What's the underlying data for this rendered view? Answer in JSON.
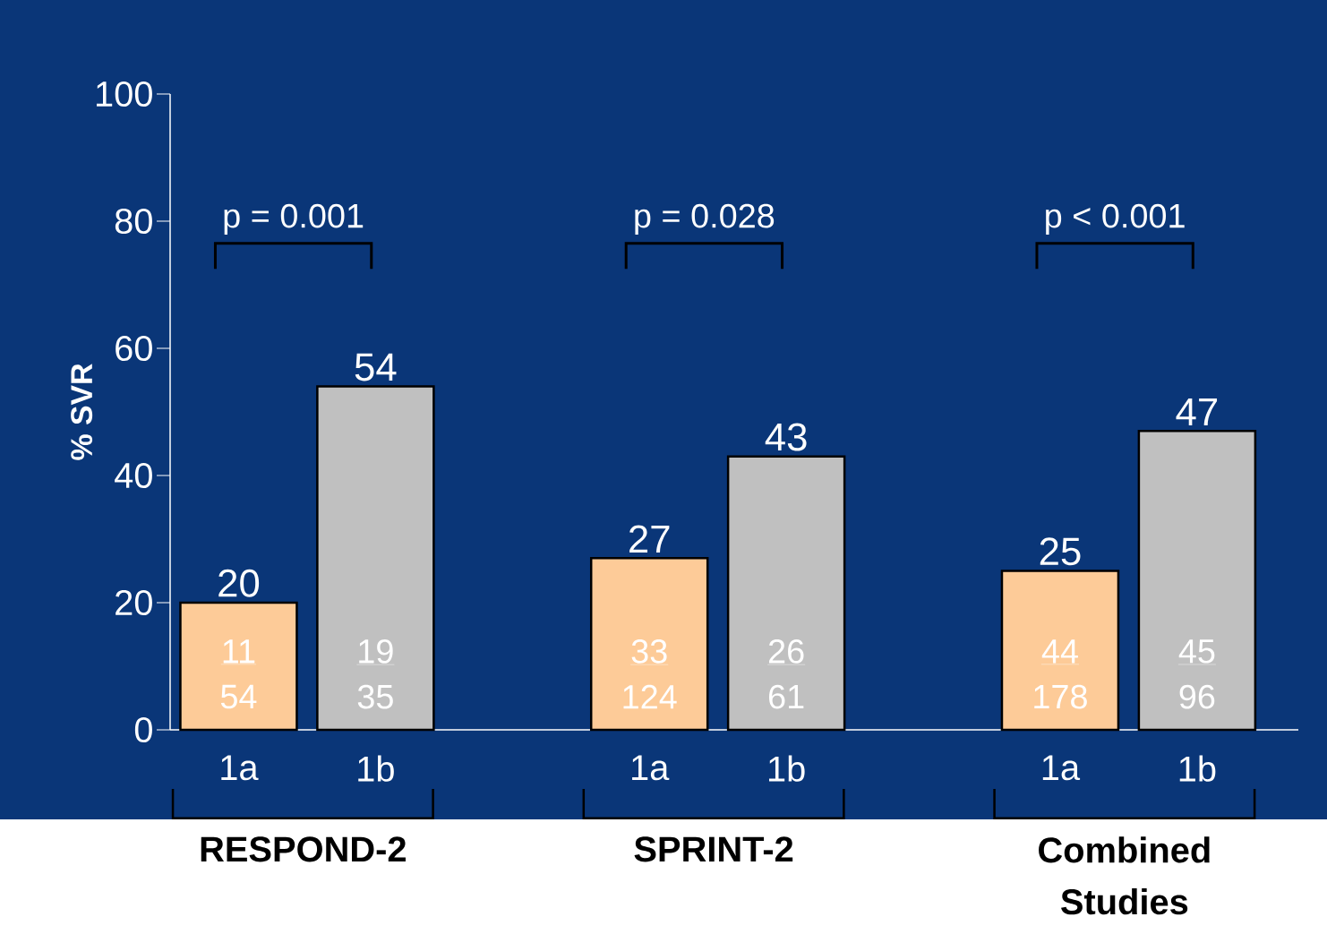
{
  "chart_data": {
    "type": "bar",
    "ylabel": "% SVR",
    "categories": [
      "1a",
      "1b",
      "1a",
      "1b",
      "1a",
      "1b"
    ],
    "values": [
      20,
      54,
      27,
      43,
      25,
      47
    ],
    "colors": [
      "#fdcb98",
      "#c0c0c0",
      "#fdcb98",
      "#c0c0c0",
      "#fdcb98",
      "#c0c0c0"
    ],
    "ylim": [
      0,
      100
    ],
    "yticks": [
      0,
      20,
      40,
      60,
      80,
      100
    ],
    "data_labels": true,
    "annotations": [
      "p = 0.001",
      "p = 0.028",
      "p < 0.001",
      "11",
      "54",
      "19",
      "35",
      "33",
      "124",
      "26",
      "61",
      "44",
      "178",
      "45",
      "96",
      "RESPOND-2",
      "SPRINT-2",
      "Combined Studies"
    ]
  }
}
